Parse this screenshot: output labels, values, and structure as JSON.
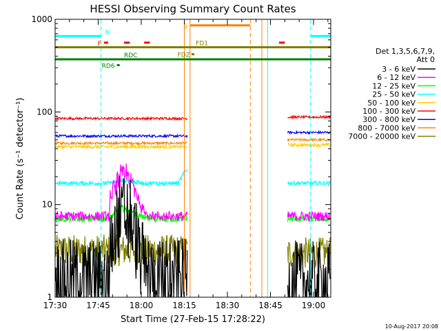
{
  "chart_data": {
    "type": "line",
    "title": "HESSI Observing Summary Count Rates",
    "xlabel": "Start Time (27-Feb-15 17:28:22)",
    "ylabel": "Count Rate (s⁻¹ detector⁻¹)",
    "yscale": "log",
    "ylim": [
      1,
      1000
    ],
    "xlim_minutes_from_1730": [
      0,
      96
    ],
    "x_tick_labels": [
      "17:30",
      "17:45",
      "18:00",
      "18:15",
      "18:30",
      "18:45",
      "19:00"
    ],
    "x_tick_minutes": [
      0,
      15,
      30,
      45,
      60,
      75,
      90
    ],
    "y_tick_labels": [
      "1",
      "10",
      "100",
      "1000"
    ],
    "y_tick_values": [
      1,
      10,
      100,
      1000
    ],
    "legend_header": [
      "Det 1,3,5,6,7,9,",
      "Att 0"
    ],
    "legend_placement": "right",
    "data_gaps_minutes": [
      [
        46,
        81
      ]
    ],
    "series": [
      {
        "name": "3 - 6 keV",
        "color": "#000000",
        "base": 1.6,
        "noise": 0.45,
        "flare_peak": 8,
        "post_level": 1.5
      },
      {
        "name": "6 - 12 keV",
        "color": "#ff00ff",
        "base": 7.5,
        "noise": 0.12,
        "flare_peak": 21,
        "post_level": 7.5
      },
      {
        "name": "12 - 25 keV",
        "color": "#00ff00",
        "base": 7.0,
        "noise": 0.08,
        "flare_peak": 9,
        "post_level": 7.0
      },
      {
        "name": "25 - 50 keV",
        "color": "#00ffff",
        "base": 17,
        "noise": 0.05,
        "flare_peak": 18,
        "post_level": 17
      },
      {
        "name": "50 - 100 keV",
        "color": "#ffcc00",
        "base": 42,
        "noise": 0.04,
        "flare_peak": 42,
        "post_level": 44
      },
      {
        "name": "100 - 300 keV",
        "color": "#ff0000",
        "base": 85,
        "noise": 0.03,
        "flare_peak": 85,
        "post_level": 88
      },
      {
        "name": "300 - 800 keV",
        "color": "#0000ff",
        "base": 55,
        "noise": 0.03,
        "flare_peak": 55,
        "post_level": 60
      },
      {
        "name": "800 - 7000 keV",
        "color": "#ff8000",
        "base": 46,
        "noise": 0.03,
        "flare_peak": 46,
        "post_level": 50
      },
      {
        "name": "7000 - 20000 keV",
        "color": "#808000",
        "base": 3.2,
        "noise": 0.18,
        "flare_peak": 3.2,
        "post_level": 3.0
      }
    ],
    "flag_bars": [
      {
        "label": "N",
        "color": "#00ffff",
        "y": 660,
        "segments": [
          [
            0,
            16
          ],
          [
            89,
            96
          ]
        ]
      },
      {
        "label": "F",
        "color": "#ff0000",
        "y": 560,
        "segments": [
          [
            17,
            18.5
          ],
          [
            24,
            26
          ],
          [
            31,
            33
          ],
          [
            78,
            80
          ]
        ]
      },
      {
        "label": "S",
        "color": "#ff8000",
        "y": 860,
        "segments": [
          [
            47,
            68
          ]
        ]
      },
      {
        "label": "FD1",
        "color": "#808000",
        "y": 500,
        "segments": [
          [
            0,
            96
          ]
        ]
      },
      {
        "label": "FDZ",
        "color": "#808000",
        "y": 420,
        "segments": [
          [
            47.5,
            48.5
          ]
        ]
      },
      {
        "label": "RDC",
        "color": "#008000",
        "y": 370,
        "segments": [
          [
            0,
            96
          ]
        ]
      },
      {
        "label": "RD6",
        "color": "#008000",
        "y": 320,
        "segments": [
          [
            21.5,
            22.5
          ]
        ]
      }
    ],
    "vertical_markers": [
      {
        "x": 0,
        "color": "#00ffff",
        "style": "dashed"
      },
      {
        "x": 16,
        "color": "#00ffff",
        "style": "dashed"
      },
      {
        "x": 45,
        "color": "#ff8000",
        "style": "solid"
      },
      {
        "x": 47,
        "color": "#ff8000",
        "style": "solid"
      },
      {
        "x": 68,
        "color": "#ff8000",
        "style": "dashed"
      },
      {
        "x": 72,
        "color": "#ff8000",
        "style": "solid"
      },
      {
        "x": 74,
        "color": "#00ffff",
        "style": "solid"
      },
      {
        "x": 89,
        "color": "#00ffff",
        "style": "dashed"
      }
    ]
  },
  "footer": {
    "date_stamp": "10-Aug-2017 20:08"
  }
}
